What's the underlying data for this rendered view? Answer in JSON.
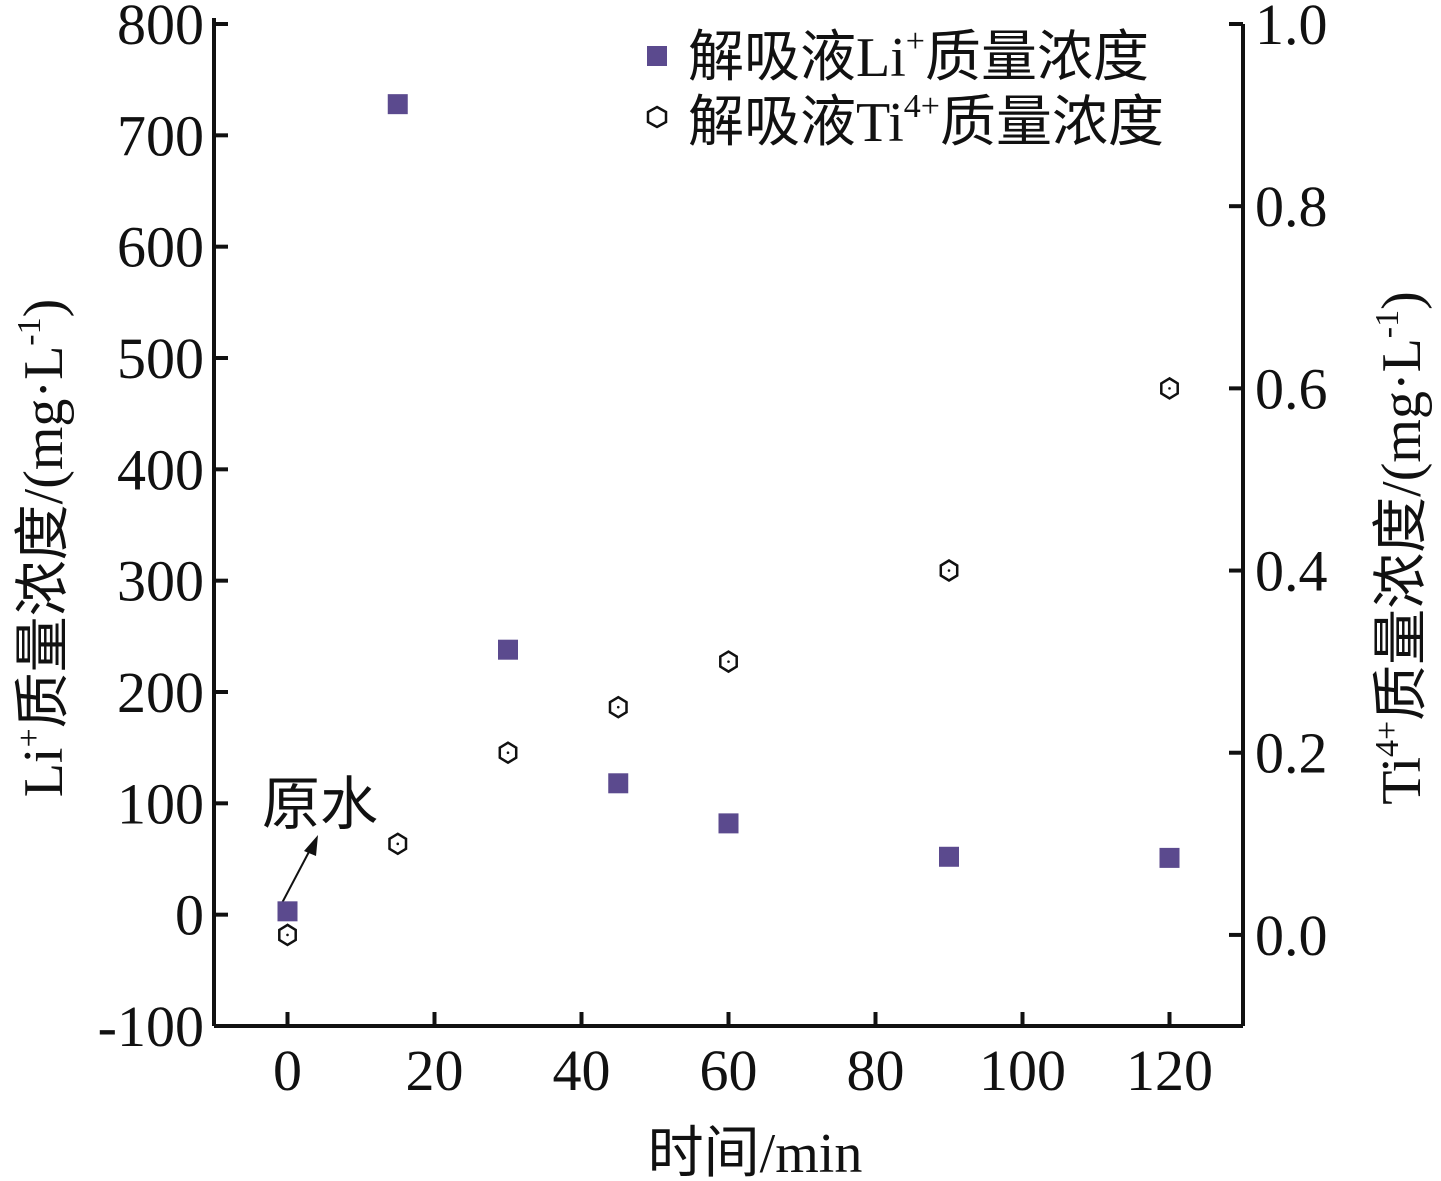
{
  "chart_data": {
    "type": "scatter",
    "xlabel": "时间/min",
    "ylabel_left": {
      "prefix": "Li",
      "sup": "+",
      "suffix": "质量浓度/(mg·L",
      "unit_sup": "-1",
      "close": ")"
    },
    "ylabel_right": {
      "prefix": "Ti",
      "sup": "4+",
      "suffix": "质量浓度/(mg·L",
      "unit_sup": "-1",
      "close": ")"
    },
    "xlim": [
      -10,
      130
    ],
    "ylim_left": [
      -100,
      800
    ],
    "ylim_right": [
      -0.1,
      1.0
    ],
    "x_ticks": [
      "0",
      "20",
      "40",
      "60",
      "80",
      "100",
      "120"
    ],
    "y_left_ticks": [
      "-100",
      "0",
      "100",
      "200",
      "300",
      "400",
      "500",
      "600",
      "700",
      "800"
    ],
    "y_right_ticks": [
      "0.0",
      "0.2",
      "0.4",
      "0.6",
      "0.8",
      "1.0"
    ],
    "series": [
      {
        "name": "解吸液Li⁺质量浓度",
        "legend": {
          "prefix": "解吸液Li",
          "sup": "+",
          "suffix": "质量浓度"
        },
        "axis": "left",
        "marker": "square",
        "color": "#5b4a8e",
        "x": [
          0,
          15,
          30,
          45,
          60,
          90,
          120
        ],
        "y": [
          3,
          728,
          238,
          118,
          82,
          52,
          51
        ]
      },
      {
        "name": "解吸液Ti⁴⁺质量浓度",
        "legend": {
          "prefix": "解吸液Ti",
          "sup": "4+",
          "suffix": "质量浓度"
        },
        "axis": "right",
        "marker": "hexagon-open",
        "color": "#111111",
        "x": [
          0,
          15,
          30,
          45,
          60,
          90,
          120
        ],
        "y": [
          0.0,
          0.1,
          0.2,
          0.25,
          0.3,
          0.4,
          0.6
        ]
      }
    ],
    "annotation": {
      "text": "原水",
      "x": 0,
      "y": 3,
      "arrow": true
    }
  }
}
